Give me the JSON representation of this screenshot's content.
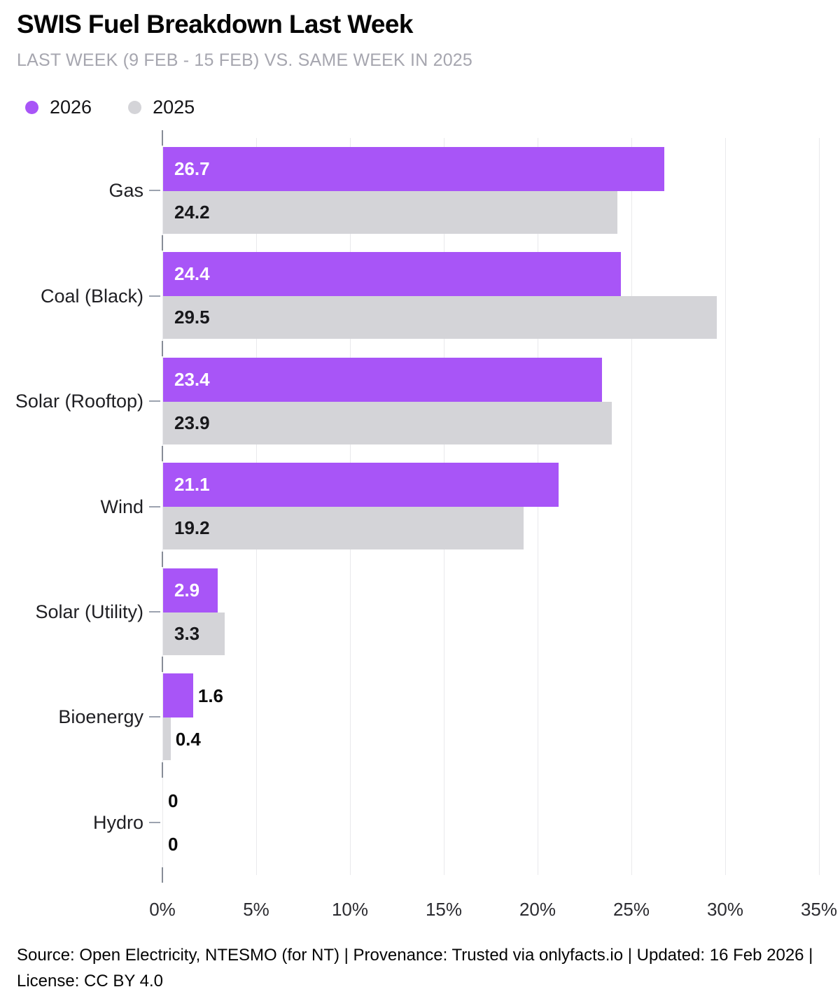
{
  "header": {
    "title": "SWIS Fuel Breakdown Last Week",
    "subtitle": "LAST WEEK (9 FEB - 15 FEB) VS. SAME WEEK IN 2025"
  },
  "legend": [
    {
      "label": "2026",
      "color": "#a855f7"
    },
    {
      "label": "2025",
      "color": "#d4d4d8"
    }
  ],
  "chart_data": {
    "type": "bar",
    "orientation": "horizontal",
    "title": "SWIS Fuel Breakdown Last Week",
    "subtitle": "LAST WEEK (9 FEB - 15 FEB) VS. SAME WEEK IN 2025",
    "categories": [
      "Gas",
      "Coal (Black)",
      "Solar (Rooftop)",
      "Wind",
      "Solar (Utility)",
      "Bioenergy",
      "Hydro"
    ],
    "series": [
      {
        "name": "2026",
        "color": "#a855f7",
        "label_color_inside": "#ffffff",
        "values": [
          26.7,
          24.4,
          23.4,
          21.1,
          2.9,
          1.6,
          0
        ]
      },
      {
        "name": "2025",
        "color": "#d4d4d8",
        "label_color_inside": "#18181b",
        "values": [
          24.2,
          29.5,
          23.9,
          19.2,
          3.3,
          0.4,
          0
        ]
      }
    ],
    "value_unit": "%",
    "xlim": [
      0,
      35
    ],
    "x_tick_labels": [
      "0%",
      "5%",
      "10%",
      "15%",
      "20%",
      "25%",
      "30%",
      "35%"
    ],
    "grid": true,
    "legend_position": "top-left"
  },
  "footer": {
    "text": "Source: Open Electricity, NTESMO (for NT) | Provenance: Trusted via onlyfacts.io | Updated: 16 Feb 2026 | License: CC BY 4.0"
  }
}
